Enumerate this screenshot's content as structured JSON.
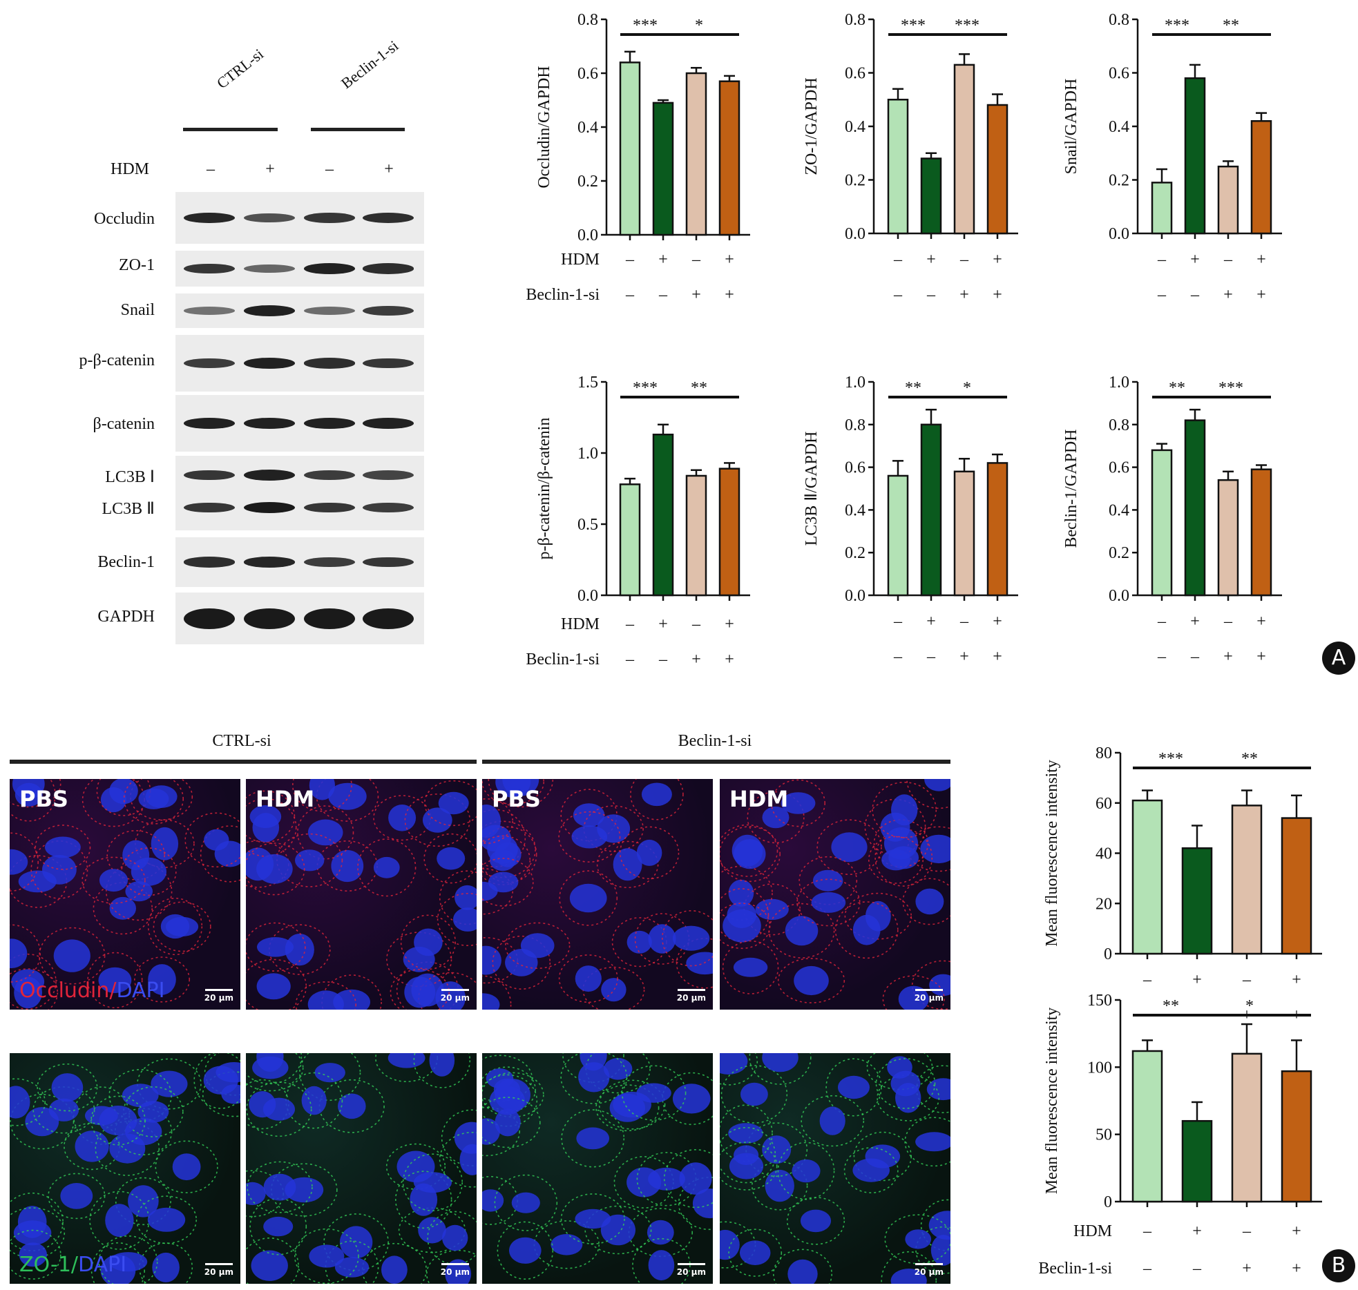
{
  "panels": {
    "a": "A",
    "b": "B"
  },
  "western_blot": {
    "conditions": [
      "CTRL-si",
      "Beclin-1-si"
    ],
    "hdm_label": "HDM",
    "hdm_signs": [
      "–",
      "+",
      "–",
      "+"
    ],
    "rows": [
      "Occludin",
      "ZO-1",
      "Snail",
      "p-β-catenin",
      "β-catenin",
      "LC3B Ⅰ",
      "LC3B Ⅱ",
      "Beclin-1",
      "GAPDH"
    ]
  },
  "condition_rows": {
    "hdm": {
      "label": "HDM",
      "signs": [
        "–",
        "+",
        "–",
        "+"
      ]
    },
    "si": {
      "label": "Beclin-1-si",
      "signs": [
        "–",
        "–",
        "+",
        "+"
      ]
    }
  },
  "colors": [
    "#b3e2b5",
    "#0a5a1e",
    "#dfc0ab",
    "#c06014"
  ],
  "if_panel": {
    "group_titles": [
      "CTRL-si",
      "Beclin-1-si"
    ],
    "image_titles": [
      "PBS",
      "HDM",
      "PBS",
      "HDM"
    ],
    "scale": "20 μm",
    "stain_occludin": {
      "a": "Occludin",
      "sep": "/",
      "b": "DAPI"
    },
    "stain_zo1": {
      "a": "ZO-1",
      "sep": "/",
      "b": "DAPI"
    }
  },
  "chart_data": [
    {
      "type": "bar",
      "ylabel": "Occludin/GAPDH",
      "ylim": [
        0,
        0.8
      ],
      "yticks": [
        "0.0",
        "0.2",
        "0.4",
        "0.6",
        "0.8"
      ],
      "values": [
        0.64,
        0.49,
        0.6,
        0.57
      ],
      "errors": [
        0.04,
        0.01,
        0.02,
        0.02
      ],
      "sig": [
        {
          "from": 0,
          "to": 1,
          "label": "***"
        },
        {
          "from": 1,
          "to": 3,
          "label": "*"
        }
      ]
    },
    {
      "type": "bar",
      "ylabel": "ZO-1/GAPDH",
      "ylim": [
        0,
        0.8
      ],
      "yticks": [
        "0.0",
        "0.2",
        "0.4",
        "0.6",
        "0.8"
      ],
      "values": [
        0.5,
        0.28,
        0.63,
        0.48
      ],
      "errors": [
        0.04,
        0.02,
        0.04,
        0.04
      ],
      "sig": [
        {
          "from": 0,
          "to": 1,
          "label": "***"
        },
        {
          "from": 1,
          "to": 3,
          "label": "***"
        }
      ]
    },
    {
      "type": "bar",
      "ylabel": "Snail/GAPDH",
      "ylim": [
        0,
        0.8
      ],
      "yticks": [
        "0.0",
        "0.2",
        "0.4",
        "0.6",
        "0.8"
      ],
      "values": [
        0.19,
        0.58,
        0.25,
        0.42
      ],
      "errors": [
        0.05,
        0.05,
        0.02,
        0.03
      ],
      "sig": [
        {
          "from": 0,
          "to": 1,
          "label": "***"
        },
        {
          "from": 1,
          "to": 3,
          "label": "**"
        }
      ]
    },
    {
      "type": "bar",
      "ylabel": "p-β-catenin/β-catenin",
      "ylim": [
        0,
        1.5
      ],
      "yticks": [
        "0.0",
        "0.5",
        "1.0",
        "1.5"
      ],
      "values": [
        0.78,
        1.13,
        0.84,
        0.89
      ],
      "errors": [
        0.04,
        0.07,
        0.04,
        0.04
      ],
      "sig": [
        {
          "from": 0,
          "to": 1,
          "label": "***"
        },
        {
          "from": 1,
          "to": 3,
          "label": "**"
        }
      ]
    },
    {
      "type": "bar",
      "ylabel": "LC3B Ⅱ/GAPDH",
      "ylim": [
        0,
        1.0
      ],
      "yticks": [
        "0.0",
        "0.2",
        "0.4",
        "0.6",
        "0.8",
        "1.0"
      ],
      "values": [
        0.56,
        0.8,
        0.58,
        0.62
      ],
      "errors": [
        0.07,
        0.07,
        0.06,
        0.04
      ],
      "sig": [
        {
          "from": 0,
          "to": 1,
          "label": "**"
        },
        {
          "from": 1,
          "to": 3,
          "label": "*"
        }
      ]
    },
    {
      "type": "bar",
      "ylabel": "Beclin-1/GAPDH",
      "ylim": [
        0,
        1.0
      ],
      "yticks": [
        "0.0",
        "0.2",
        "0.4",
        "0.6",
        "0.8",
        "1.0"
      ],
      "values": [
        0.68,
        0.82,
        0.54,
        0.59
      ],
      "errors": [
        0.03,
        0.05,
        0.04,
        0.02
      ],
      "sig": [
        {
          "from": 0,
          "to": 1,
          "label": "**"
        },
        {
          "from": 1,
          "to": 3,
          "label": "***"
        }
      ]
    },
    {
      "type": "bar",
      "ylabel": "Mean fluorescence intensity",
      "ylim": [
        0,
        80
      ],
      "yticks": [
        "0",
        "20",
        "40",
        "60",
        "80"
      ],
      "values": [
        61,
        42,
        59,
        54
      ],
      "errors": [
        4,
        9,
        6,
        9
      ],
      "sig": [
        {
          "from": 0,
          "to": 1,
          "label": "***"
        },
        {
          "from": 1,
          "to": 3,
          "label": "**"
        }
      ]
    },
    {
      "type": "bar",
      "ylabel": "Mean fluorescence intensity",
      "ylim": [
        0,
        150
      ],
      "yticks": [
        "0",
        "50",
        "100",
        "150"
      ],
      "values": [
        112,
        60,
        110,
        97
      ],
      "errors": [
        8,
        14,
        22,
        23
      ],
      "sig": [
        {
          "from": 0,
          "to": 1,
          "label": "**"
        },
        {
          "from": 1,
          "to": 3,
          "label": "*"
        }
      ]
    }
  ]
}
